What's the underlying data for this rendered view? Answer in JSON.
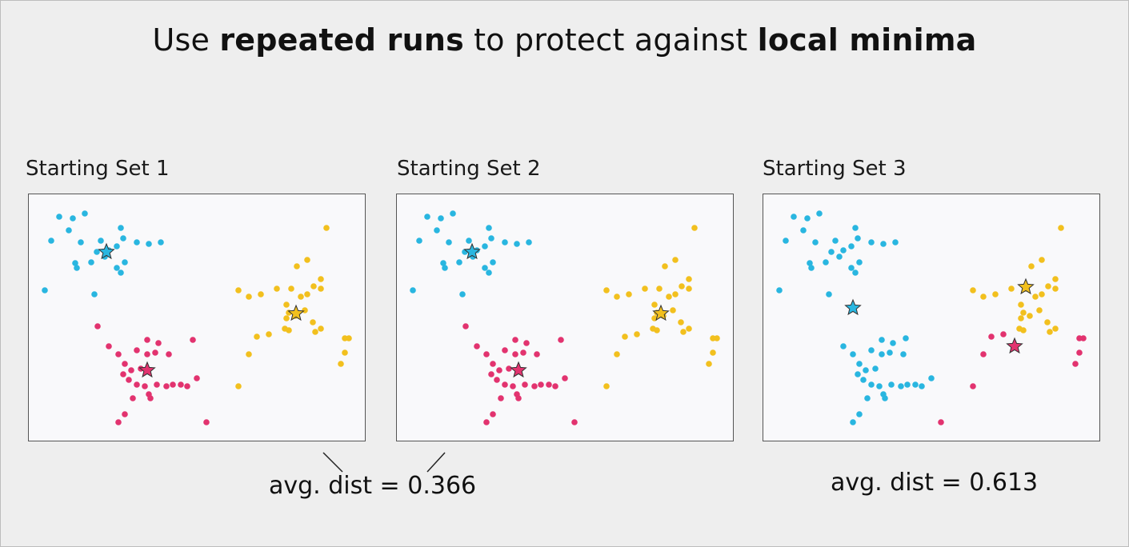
{
  "title": {
    "part1": "Use ",
    "bold1": "repeated runs",
    "part2": " to protect against ",
    "bold2": "local minima"
  },
  "panels": [
    {
      "label": "Starting Set 1"
    },
    {
      "label": "Starting Set 2"
    },
    {
      "label": "Starting Set 3"
    }
  ],
  "metrics": {
    "sets12": "avg. dist = 0.366",
    "set3": "avg. dist = 0.613"
  },
  "colors": {
    "blue": "#29b6e0",
    "yellow": "#f2c01e",
    "pink": "#e2336f"
  },
  "chart_data": [
    {
      "type": "scatter",
      "title": "Starting Set 1",
      "xlim": [
        0,
        420
      ],
      "ylim": [
        0,
        308
      ],
      "grid": false,
      "series": [
        {
          "color": "blue",
          "points": [
            [
              38,
              28
            ],
            [
              55,
              30
            ],
            [
              70,
              24
            ],
            [
              50,
              45
            ],
            [
              28,
              58
            ],
            [
              65,
              60
            ],
            [
              90,
              58
            ],
            [
              115,
              42
            ],
            [
              118,
              55
            ],
            [
              135,
              60
            ],
            [
              150,
              62
            ],
            [
              165,
              60
            ],
            [
              85,
              72
            ],
            [
              100,
              70
            ],
            [
              110,
              65
            ],
            [
              95,
              78
            ],
            [
              78,
              85
            ],
            [
              60,
              92
            ],
            [
              58,
              86
            ],
            [
              110,
              92
            ],
            [
              115,
              98
            ],
            [
              120,
              85
            ],
            [
              20,
              120
            ],
            [
              82,
              125
            ]
          ]
        },
        {
          "color": "yellow",
          "points": [
            [
              372,
              42
            ],
            [
              348,
              82
            ],
            [
              335,
              90
            ],
            [
              365,
              106
            ],
            [
              365,
              118
            ],
            [
              356,
              115
            ],
            [
              348,
              125
            ],
            [
              340,
              128
            ],
            [
              328,
              118
            ],
            [
              310,
              118
            ],
            [
              290,
              125
            ],
            [
              262,
              120
            ],
            [
              275,
              128
            ],
            [
              322,
              138
            ],
            [
              325,
              148
            ],
            [
              322,
              155
            ],
            [
              333,
              152
            ],
            [
              345,
              145
            ],
            [
              355,
              160
            ],
            [
              358,
              172
            ],
            [
              365,
              168
            ],
            [
              320,
              168
            ],
            [
              325,
              170
            ],
            [
              300,
              175
            ],
            [
              285,
              178
            ],
            [
              275,
              200
            ],
            [
              395,
              180
            ],
            [
              400,
              180
            ],
            [
              390,
              212
            ],
            [
              395,
              198
            ],
            [
              262,
              240
            ]
          ]
        },
        {
          "color": "pink",
          "points": [
            [
              86,
              165
            ],
            [
              100,
              190
            ],
            [
              112,
              200
            ],
            [
              120,
              212
            ],
            [
              135,
              195
            ],
            [
              148,
              200
            ],
            [
              158,
              198
            ],
            [
              175,
              200
            ],
            [
              148,
              182
            ],
            [
              162,
              186
            ],
            [
              205,
              182
            ],
            [
              140,
              218
            ],
            [
              128,
              220
            ],
            [
              118,
              225
            ],
            [
              125,
              232
            ],
            [
              135,
              238
            ],
            [
              145,
              240
            ],
            [
              160,
              238
            ],
            [
              172,
              240
            ],
            [
              180,
              238
            ],
            [
              190,
              238
            ],
            [
              198,
              240
            ],
            [
              210,
              230
            ],
            [
              150,
              250
            ],
            [
              130,
              255
            ],
            [
              152,
              255
            ],
            [
              120,
              275
            ],
            [
              112,
              285
            ],
            [
              222,
              285
            ]
          ]
        }
      ],
      "centroids": [
        {
          "color": "blue",
          "point": [
            97,
            72
          ]
        },
        {
          "color": "yellow",
          "point": [
            334,
            149
          ]
        },
        {
          "color": "pink",
          "point": [
            148,
            220
          ]
        }
      ]
    },
    {
      "type": "scatter",
      "title": "Starting Set 2",
      "xlim": [
        0,
        420
      ],
      "ylim": [
        0,
        308
      ],
      "grid": false,
      "series": [
        {
          "color": "blue",
          "points": [
            [
              38,
              28
            ],
            [
              55,
              30
            ],
            [
              70,
              24
            ],
            [
              50,
              45
            ],
            [
              28,
              58
            ],
            [
              65,
              60
            ],
            [
              90,
              58
            ],
            [
              115,
              42
            ],
            [
              118,
              55
            ],
            [
              135,
              60
            ],
            [
              150,
              62
            ],
            [
              165,
              60
            ],
            [
              85,
              72
            ],
            [
              100,
              70
            ],
            [
              110,
              65
            ],
            [
              95,
              78
            ],
            [
              78,
              85
            ],
            [
              60,
              92
            ],
            [
              58,
              86
            ],
            [
              110,
              92
            ],
            [
              115,
              98
            ],
            [
              120,
              85
            ],
            [
              20,
              120
            ],
            [
              82,
              125
            ]
          ]
        },
        {
          "color": "yellow",
          "points": [
            [
              372,
              42
            ],
            [
              348,
              82
            ],
            [
              335,
              90
            ],
            [
              365,
              106
            ],
            [
              365,
              118
            ],
            [
              356,
              115
            ],
            [
              348,
              125
            ],
            [
              340,
              128
            ],
            [
              328,
              118
            ],
            [
              310,
              118
            ],
            [
              290,
              125
            ],
            [
              262,
              120
            ],
            [
              275,
              128
            ],
            [
              322,
              138
            ],
            [
              325,
              148
            ],
            [
              322,
              155
            ],
            [
              333,
              152
            ],
            [
              345,
              145
            ],
            [
              355,
              160
            ],
            [
              358,
              172
            ],
            [
              365,
              168
            ],
            [
              320,
              168
            ],
            [
              325,
              170
            ],
            [
              300,
              175
            ],
            [
              285,
              178
            ],
            [
              275,
              200
            ],
            [
              395,
              180
            ],
            [
              400,
              180
            ],
            [
              390,
              212
            ],
            [
              395,
              198
            ],
            [
              262,
              240
            ]
          ]
        },
        {
          "color": "pink",
          "points": [
            [
              86,
              165
            ],
            [
              100,
              190
            ],
            [
              112,
              200
            ],
            [
              120,
              212
            ],
            [
              135,
              195
            ],
            [
              148,
              200
            ],
            [
              158,
              198
            ],
            [
              175,
              200
            ],
            [
              148,
              182
            ],
            [
              162,
              186
            ],
            [
              205,
              182
            ],
            [
              140,
              218
            ],
            [
              128,
              220
            ],
            [
              118,
              225
            ],
            [
              125,
              232
            ],
            [
              135,
              238
            ],
            [
              145,
              240
            ],
            [
              160,
              238
            ],
            [
              172,
              240
            ],
            [
              180,
              238
            ],
            [
              190,
              238
            ],
            [
              198,
              240
            ],
            [
              210,
              230
            ],
            [
              150,
              250
            ],
            [
              130,
              255
            ],
            [
              152,
              255
            ],
            [
              120,
              275
            ],
            [
              112,
              285
            ],
            [
              222,
              285
            ]
          ]
        }
      ],
      "centroids": [
        {
          "color": "blue",
          "point": [
            94,
            72
          ]
        },
        {
          "color": "yellow",
          "point": [
            330,
            149
          ]
        },
        {
          "color": "pink",
          "point": [
            152,
            220
          ]
        }
      ]
    },
    {
      "type": "scatter",
      "title": "Starting Set 3",
      "xlim": [
        0,
        420
      ],
      "ylim": [
        0,
        308
      ],
      "grid": false,
      "series": [
        {
          "color": "blue",
          "points": [
            [
              38,
              28
            ],
            [
              55,
              30
            ],
            [
              70,
              24
            ],
            [
              50,
              45
            ],
            [
              28,
              58
            ],
            [
              65,
              60
            ],
            [
              90,
              58
            ],
            [
              115,
              42
            ],
            [
              118,
              55
            ],
            [
              135,
              60
            ],
            [
              150,
              62
            ],
            [
              165,
              60
            ],
            [
              85,
              72
            ],
            [
              100,
              70
            ],
            [
              110,
              65
            ],
            [
              95,
              78
            ],
            [
              78,
              85
            ],
            [
              60,
              92
            ],
            [
              58,
              86
            ],
            [
              110,
              92
            ],
            [
              115,
              98
            ],
            [
              120,
              85
            ],
            [
              20,
              120
            ],
            [
              82,
              125
            ],
            [
              178,
              180
            ],
            [
              100,
              190
            ],
            [
              112,
              200
            ],
            [
              120,
              212
            ],
            [
              135,
              195
            ],
            [
              148,
              200
            ],
            [
              158,
              198
            ],
            [
              175,
              200
            ],
            [
              148,
              182
            ],
            [
              162,
              186
            ],
            [
              140,
              218
            ],
            [
              128,
              220
            ],
            [
              118,
              225
            ],
            [
              125,
              232
            ],
            [
              135,
              238
            ],
            [
              145,
              240
            ],
            [
              160,
              238
            ],
            [
              172,
              240
            ],
            [
              180,
              238
            ],
            [
              190,
              238
            ],
            [
              198,
              240
            ],
            [
              210,
              230
            ],
            [
              150,
              250
            ],
            [
              130,
              255
            ],
            [
              152,
              255
            ],
            [
              120,
              275
            ],
            [
              112,
              285
            ]
          ]
        },
        {
          "color": "yellow",
          "points": [
            [
              372,
              42
            ],
            [
              348,
              82
            ],
            [
              335,
              90
            ],
            [
              365,
              106
            ],
            [
              365,
              118
            ],
            [
              356,
              115
            ],
            [
              348,
              125
            ],
            [
              340,
              128
            ],
            [
              328,
              118
            ],
            [
              310,
              118
            ],
            [
              290,
              125
            ],
            [
              262,
              120
            ],
            [
              275,
              128
            ],
            [
              322,
              138
            ],
            [
              325,
              148
            ],
            [
              322,
              155
            ],
            [
              333,
              152
            ],
            [
              345,
              145
            ],
            [
              355,
              160
            ],
            [
              358,
              172
            ],
            [
              365,
              168
            ],
            [
              320,
              168
            ],
            [
              325,
              170
            ]
          ]
        },
        {
          "color": "pink",
          "points": [
            [
              300,
              175
            ],
            [
              285,
              178
            ],
            [
              275,
              200
            ],
            [
              395,
              180
            ],
            [
              400,
              180
            ],
            [
              390,
              212
            ],
            [
              395,
              198
            ],
            [
              262,
              240
            ],
            [
              222,
              285
            ]
          ]
        }
      ],
      "centroids": [
        {
          "color": "blue",
          "point": [
            112,
            142
          ]
        },
        {
          "color": "yellow",
          "point": [
            328,
            116
          ]
        },
        {
          "color": "pink",
          "point": [
            314,
            190
          ]
        }
      ]
    }
  ]
}
